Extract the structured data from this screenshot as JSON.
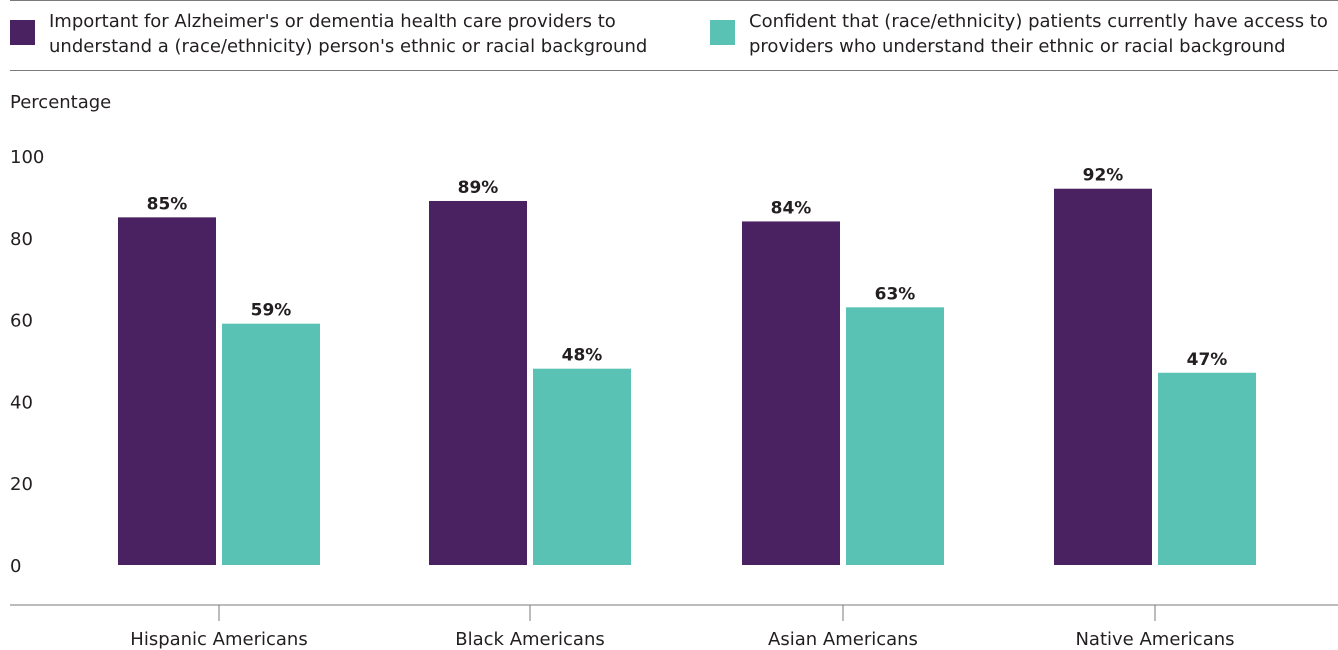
{
  "chart_data": {
    "type": "bar",
    "title": "",
    "xlabel": "",
    "ylabel": "Percentage",
    "ylim": [
      0,
      100
    ],
    "yticks": [
      0,
      20,
      40,
      60,
      80,
      100
    ],
    "grid": false,
    "legend_position": "top",
    "categories": [
      "Hispanic Americans",
      "Black Americans",
      "Asian Americans",
      "Native Americans"
    ],
    "series": [
      {
        "name": "Important for Alzheimer's or dementia health care providers to understand a (race/ethnicity) person's ethnic or racial background",
        "color": "#4a2262",
        "values": [
          85,
          89,
          84,
          92
        ],
        "labels": [
          "85%",
          "89%",
          "84%",
          "92%"
        ]
      },
      {
        "name": "Confident that (race/ethnicity) patients currently have access to providers who understand their ethnic or racial background",
        "color": "#5ac2b5",
        "values": [
          59,
          48,
          63,
          47
        ],
        "labels": [
          "59%",
          "48%",
          "63%",
          "47%"
        ]
      }
    ]
  }
}
